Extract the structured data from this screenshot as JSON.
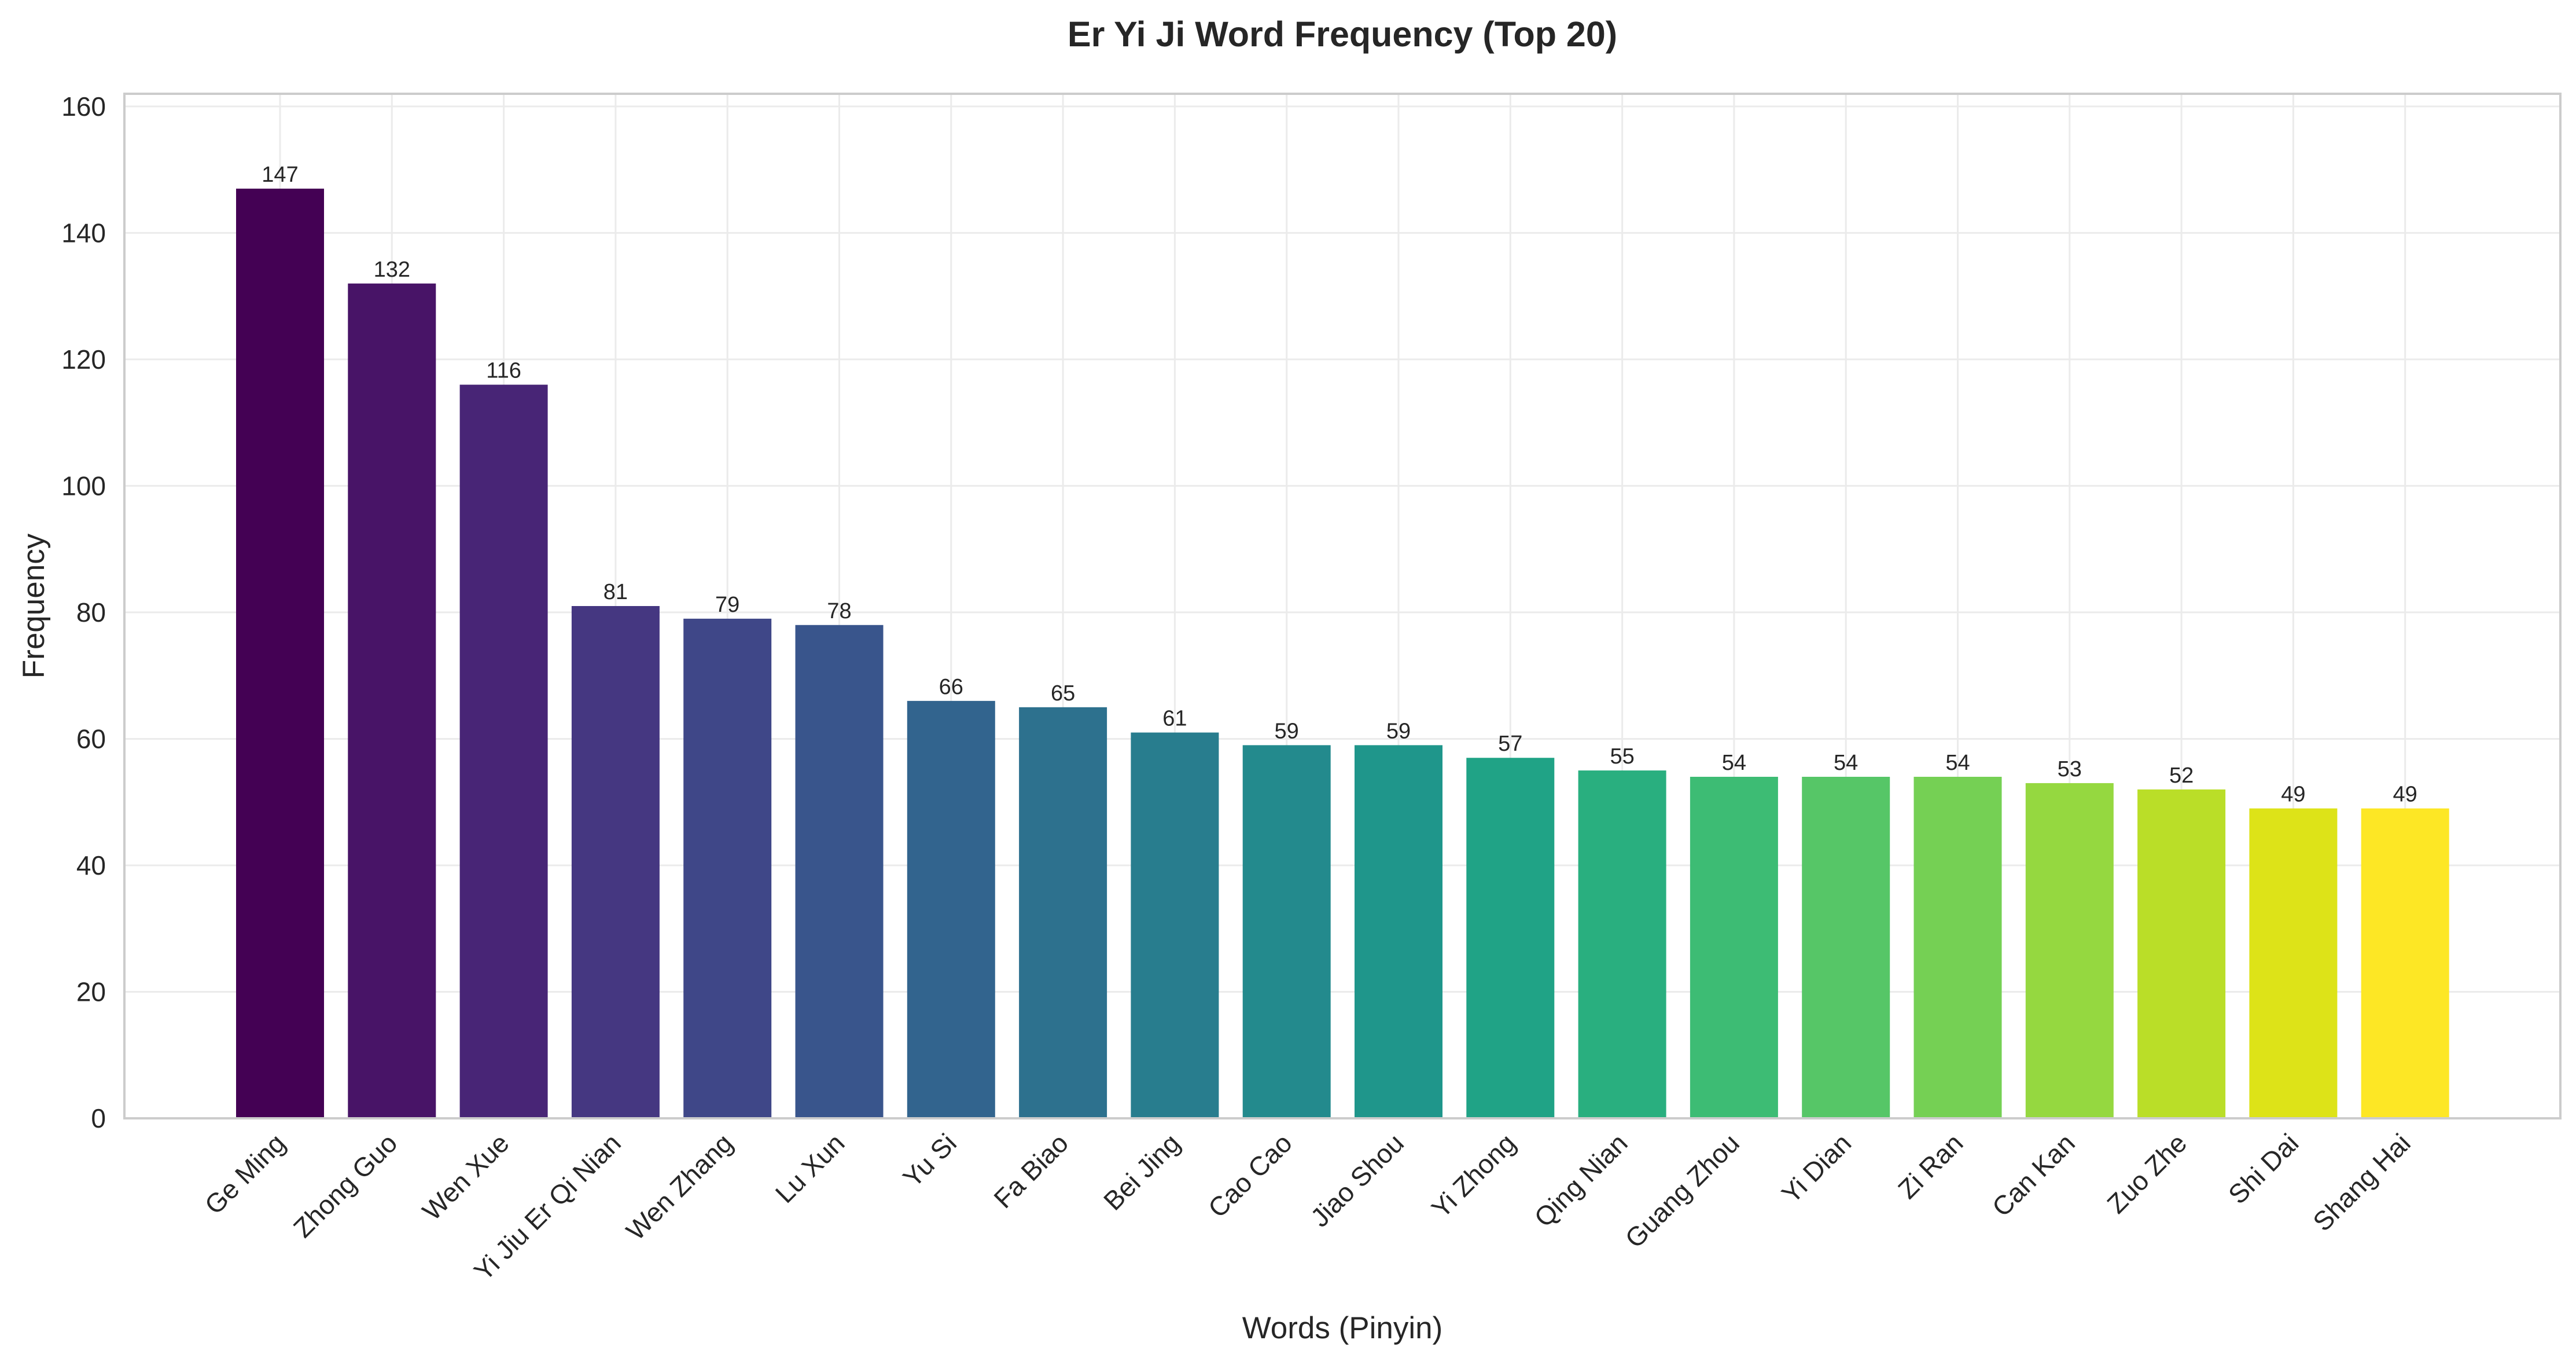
{
  "chart_data": {
    "type": "bar",
    "title": "Er Yi Ji Word Frequency (Top 20)",
    "xlabel": "Words (Pinyin)",
    "ylabel": "Frequency",
    "ylim": [
      0,
      162
    ],
    "yticks": [
      0,
      20,
      40,
      60,
      80,
      100,
      120,
      140,
      160
    ],
    "grid": true,
    "colormap": "viridis",
    "categories": [
      "Ge Ming",
      "Zhong Guo",
      "Wen Xue",
      "Yi Jiu Er Qi Nian",
      "Wen Zhang",
      "Lu Xun",
      "Yu Si",
      "Fa Biao",
      "Bei Jing",
      "Cao Cao",
      "Jiao Shou",
      "Yi Zhong",
      "Qing Nian",
      "Guang Zhou",
      "Yi Dian",
      "Zi Ran",
      "Can Kan",
      "Zuo Zhe",
      "Shi Dai",
      "Shang Hai"
    ],
    "values": [
      147,
      132,
      116,
      81,
      79,
      78,
      66,
      65,
      61,
      59,
      59,
      57,
      55,
      54,
      54,
      54,
      53,
      52,
      49,
      49
    ],
    "colors": [
      "#440154",
      "#481467",
      "#482576",
      "#453781",
      "#3f4788",
      "#39558c",
      "#32648e",
      "#2d718e",
      "#287d8e",
      "#238a8d",
      "#1f968b",
      "#20a386",
      "#29af7f",
      "#3dbc74",
      "#56c667",
      "#75d054",
      "#95d840",
      "#bade28",
      "#dde318",
      "#fde725"
    ]
  }
}
